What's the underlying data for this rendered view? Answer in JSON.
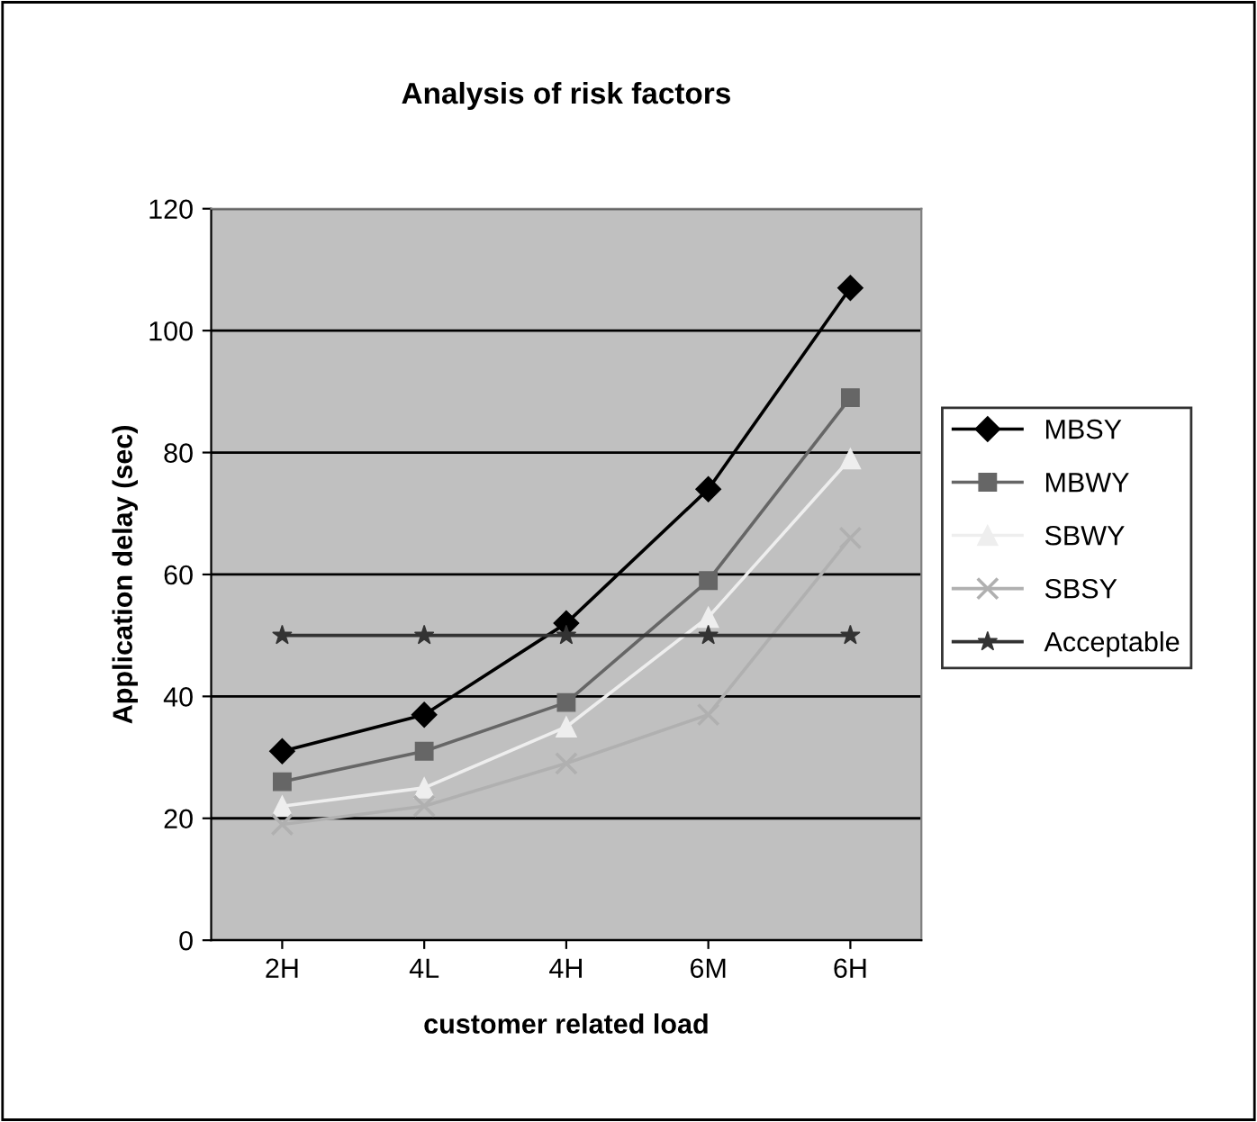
{
  "chart_data": {
    "type": "line",
    "title": "Analysis of risk factors",
    "xlabel": "customer related load",
    "ylabel": "Application delay (sec)",
    "categories": [
      "2H",
      "4L",
      "4H",
      "6M",
      "6H"
    ],
    "series": [
      {
        "name": "MBSY",
        "color": "#000000",
        "marker": "diamond",
        "values": [
          31,
          37,
          52,
          74,
          107
        ]
      },
      {
        "name": "MBWY",
        "color": "#666666",
        "marker": "square",
        "values": [
          26,
          31,
          39,
          59,
          89
        ]
      },
      {
        "name": "SBWY",
        "color": "#eeeeee",
        "marker": "triangle",
        "values": [
          22,
          25,
          35,
          53,
          79
        ]
      },
      {
        "name": "SBSY",
        "color": "#b0b0b0",
        "marker": "cross",
        "values": [
          19,
          22,
          29,
          37,
          66
        ]
      },
      {
        "name": "Acceptable",
        "color": "#333333",
        "marker": "star",
        "values": [
          50,
          50,
          50,
          50,
          50
        ]
      }
    ],
    "ylim": [
      0,
      120
    ],
    "yticks": [
      0,
      20,
      40,
      60,
      80,
      100,
      120
    ],
    "grid": "y",
    "legend": "right",
    "line_style": "solid"
  }
}
